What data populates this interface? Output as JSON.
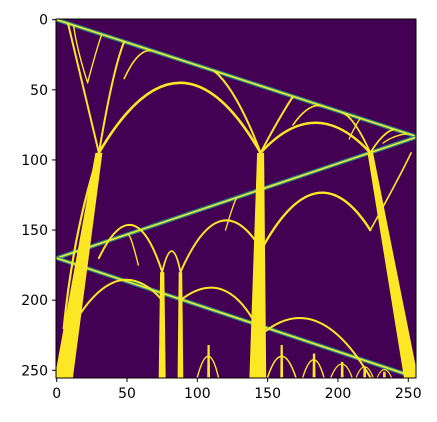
{
  "chart_data": {
    "type": "heatmap",
    "title": "",
    "xlabel": "",
    "ylabel": "",
    "colormap": "viridis",
    "colors": {
      "background": "#440154",
      "foreground": "#fde725",
      "edge": "#21918c"
    },
    "xlim": [
      -0.5,
      255.5
    ],
    "ylim": [
      255.5,
      -0.5
    ],
    "xticks": [
      0,
      50,
      100,
      150,
      200,
      250
    ],
    "yticks": [
      0,
      50,
      100,
      150,
      200,
      250
    ],
    "grid": false,
    "description": "",
    "structures": {
      "upper_arch_line": {
        "from": [
          0,
          0
        ],
        "to": [
          255,
          83
        ]
      },
      "middle_arch_line": {
        "from": [
          0,
          170
        ],
        "to": [
          255,
          84
        ]
      },
      "lower_arch_line": {
        "from": [
          0,
          170
        ],
        "to": [
          255,
          255
        ]
      },
      "main_columns": [
        {
          "x_bottom": 5,
          "x_top": 30,
          "y_top": 95,
          "y_bottom": 255,
          "width_bottom": 12
        },
        {
          "x_bottom": 75,
          "x_top": 75,
          "y_top": 180,
          "y_bottom": 255,
          "width_bottom": 5
        },
        {
          "x_bottom": 88,
          "x_top": 88,
          "y_top": 180,
          "y_bottom": 255,
          "width_bottom": 4
        },
        {
          "x_bottom": 143,
          "x_top": 145,
          "y_top": 95,
          "y_bottom": 255,
          "width_bottom": 12
        },
        {
          "x_bottom": 252,
          "x_top": 222,
          "y_top": 95,
          "y_bottom": 255,
          "width_bottom": 10
        }
      ]
    }
  }
}
